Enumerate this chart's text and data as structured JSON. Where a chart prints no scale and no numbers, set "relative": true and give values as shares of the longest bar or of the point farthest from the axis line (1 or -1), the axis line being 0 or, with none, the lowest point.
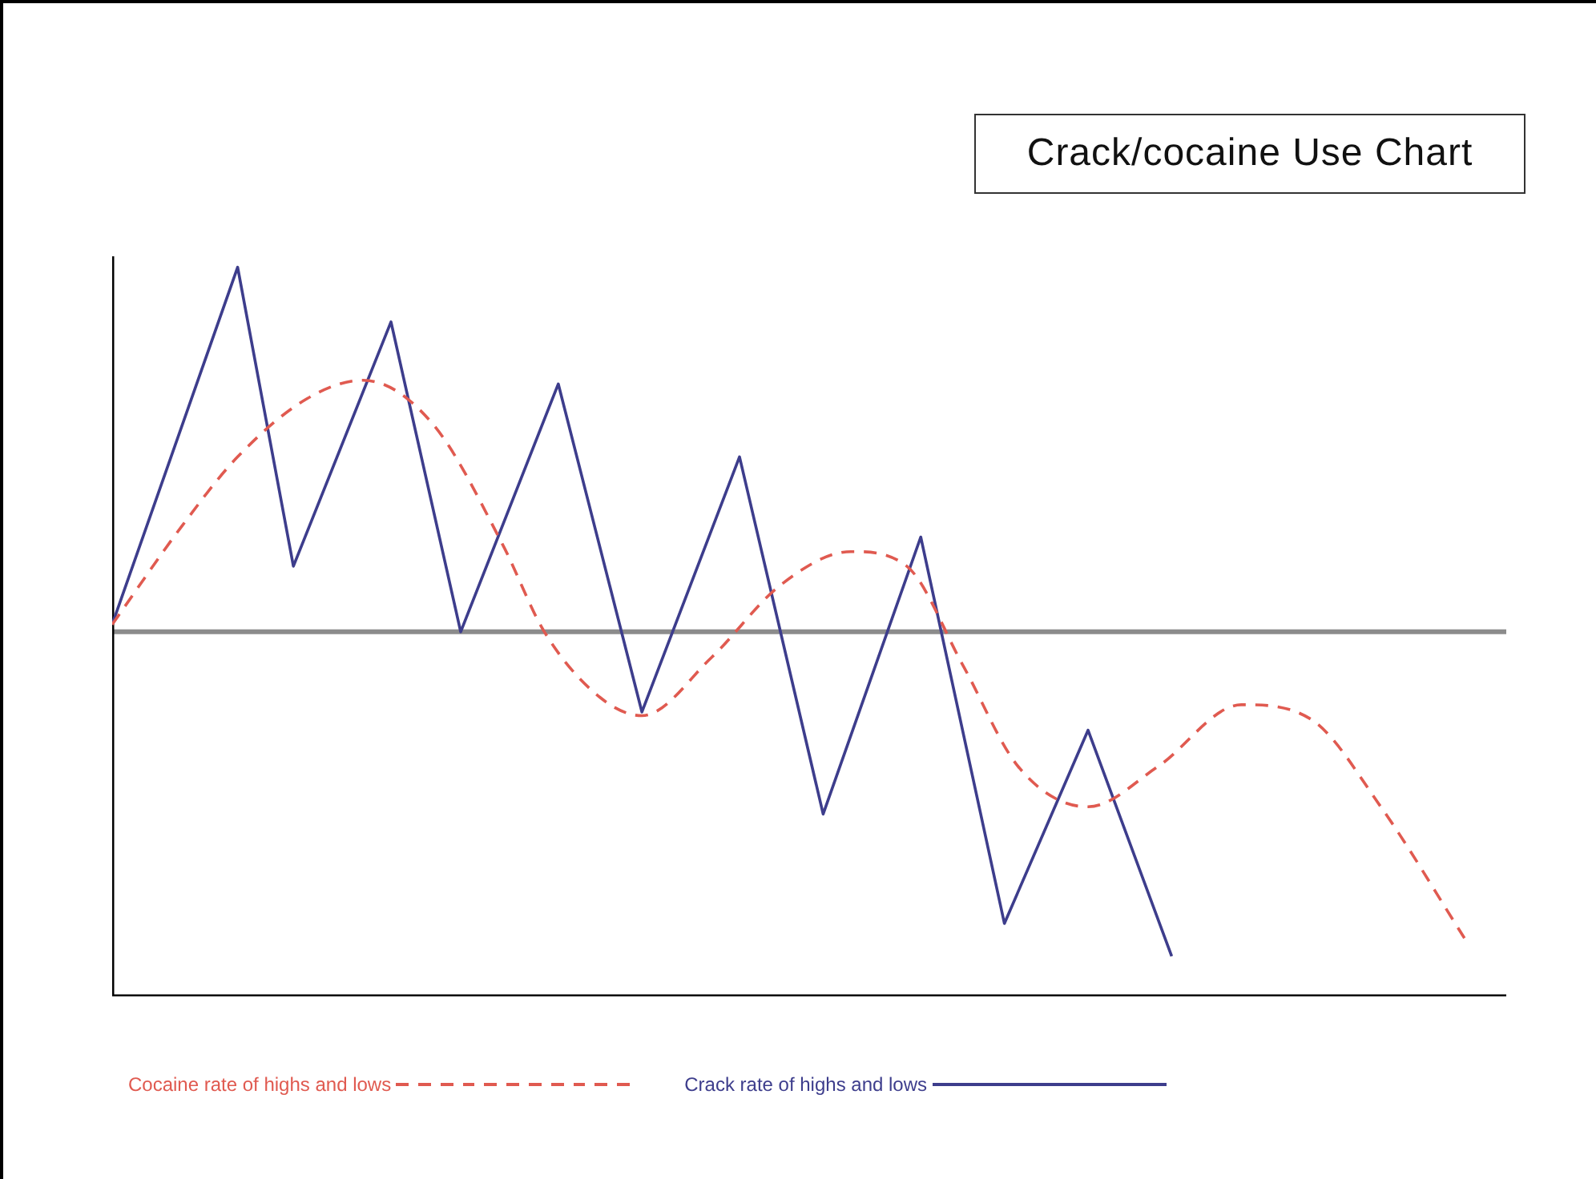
{
  "chart_data": {
    "type": "line",
    "title": "Crack/cocaine Use Chart",
    "relative": true,
    "legend": "bottom",
    "categories": [
      null,
      null,
      null,
      null,
      null,
      null,
      null,
      null,
      null,
      null,
      null,
      null,
      null,
      null,
      null,
      null,
      null,
      null,
      null,
      null,
      null,
      null,
      null,
      null,
      null,
      null,
      null,
      null,
      null,
      null,
      null,
      null,
      null,
      null,
      null,
      null,
      null,
      null,
      null,
      null,
      null,
      null,
      null,
      null,
      null,
      null,
      null,
      null,
      null,
      null,
      null,
      null,
      null,
      null,
      null,
      null,
      null,
      null,
      null,
      null,
      null,
      null,
      null,
      null,
      null,
      null,
      null,
      null,
      null,
      null,
      null,
      null,
      null,
      null,
      null,
      null,
      null,
      null,
      null,
      null,
      null,
      null,
      null,
      null,
      null,
      null,
      null,
      null,
      null,
      null,
      null,
      null,
      null,
      null,
      null,
      null,
      null,
      null,
      null,
      null,
      null
    ],
    "series": [
      {
        "name": "Cocaine rate of highs and lows",
        "color": "#e05a50",
        "line_style": "dashed",
        "values": [
          0.02,
          null,
          null,
          null,
          null,
          0.29,
          null,
          null,
          null,
          0.48,
          null,
          null,
          null,
          null,
          0.64,
          null,
          null,
          null,
          0.69,
          null,
          null,
          null,
          null,
          0.57,
          null,
          null,
          null,
          null,
          0.24,
          null,
          null,
          0,
          null,
          null,
          null,
          -0.18,
          null,
          null,
          -0.23,
          null,
          null,
          null,
          null,
          -0.07,
          null,
          null,
          null,
          null,
          0.13,
          null,
          null,
          null,
          null,
          0.22,
          null,
          null,
          null,
          0.18,
          null,
          null,
          null,
          -0.09,
          null,
          null,
          null,
          -0.37,
          null,
          null,
          null,
          null,
          -0.48,
          null,
          null,
          null,
          null,
          -0.37,
          null,
          null,
          null,
          null,
          null,
          -0.2,
          null,
          null,
          null,
          null,
          -0.24,
          null,
          null,
          null,
          null,
          -0.48,
          null,
          null,
          null,
          null,
          null,
          -0.84,
          null,
          null,
          null
        ]
      },
      {
        "name": "Crack rate of highs and lows",
        "color": "#3d3d8c",
        "line_style": "solid",
        "values": [
          0.02,
          null,
          null,
          null,
          null,
          null,
          null,
          null,
          null,
          1,
          null,
          null,
          null,
          0.18,
          null,
          null,
          null,
          null,
          null,
          null,
          0.85,
          null,
          null,
          null,
          null,
          0,
          null,
          null,
          null,
          null,
          null,
          null,
          0.68,
          null,
          null,
          null,
          null,
          null,
          -0.22,
          null,
          null,
          null,
          null,
          null,
          null,
          0.48,
          null,
          null,
          null,
          null,
          null,
          -0.5,
          null,
          null,
          null,
          null,
          null,
          null,
          0.26,
          null,
          null,
          null,
          null,
          null,
          -0.8,
          null,
          null,
          null,
          null,
          null,
          -0.27,
          null,
          null,
          null,
          null,
          null,
          -0.89,
          null,
          null,
          null,
          null,
          null,
          null,
          null,
          null,
          null,
          null,
          null,
          null,
          null,
          null,
          null,
          null,
          null,
          null,
          null,
          null,
          null,
          null,
          null,
          null
        ]
      }
    ]
  }
}
